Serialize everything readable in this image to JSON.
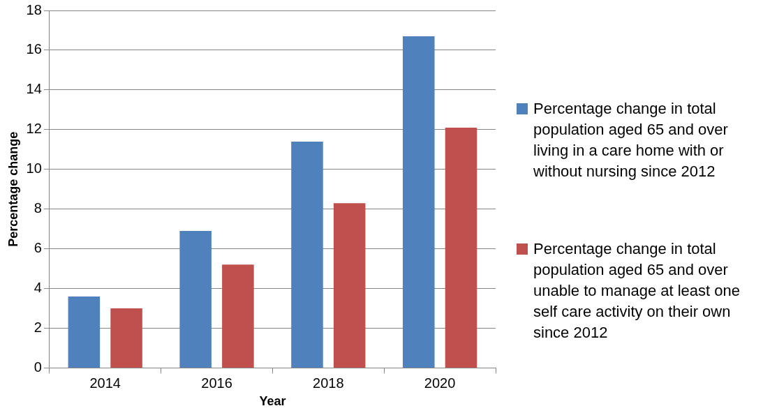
{
  "chart_data": {
    "type": "bar",
    "xlabel": "Year",
    "ylabel": "Percentage change",
    "categories": [
      "2014",
      "2016",
      "2018",
      "2020"
    ],
    "series": [
      {
        "name": "Percentage change in total population aged 65 and over living in a care home with or without nursing since 2012",
        "color": "#4f81bd",
        "values": [
          3.6,
          6.9,
          11.4,
          16.7
        ]
      },
      {
        "name": "Percentage change in total population aged 65 and over unable to manage at least one self care activity on their own since 2012",
        "color": "#c0504d",
        "values": [
          3.0,
          5.2,
          8.3,
          12.1
        ]
      }
    ],
    "ylim": [
      0,
      18
    ],
    "yticks": [
      0,
      2,
      4,
      6,
      8,
      10,
      12,
      14,
      16,
      18
    ],
    "grid": "y",
    "legend": "right"
  }
}
